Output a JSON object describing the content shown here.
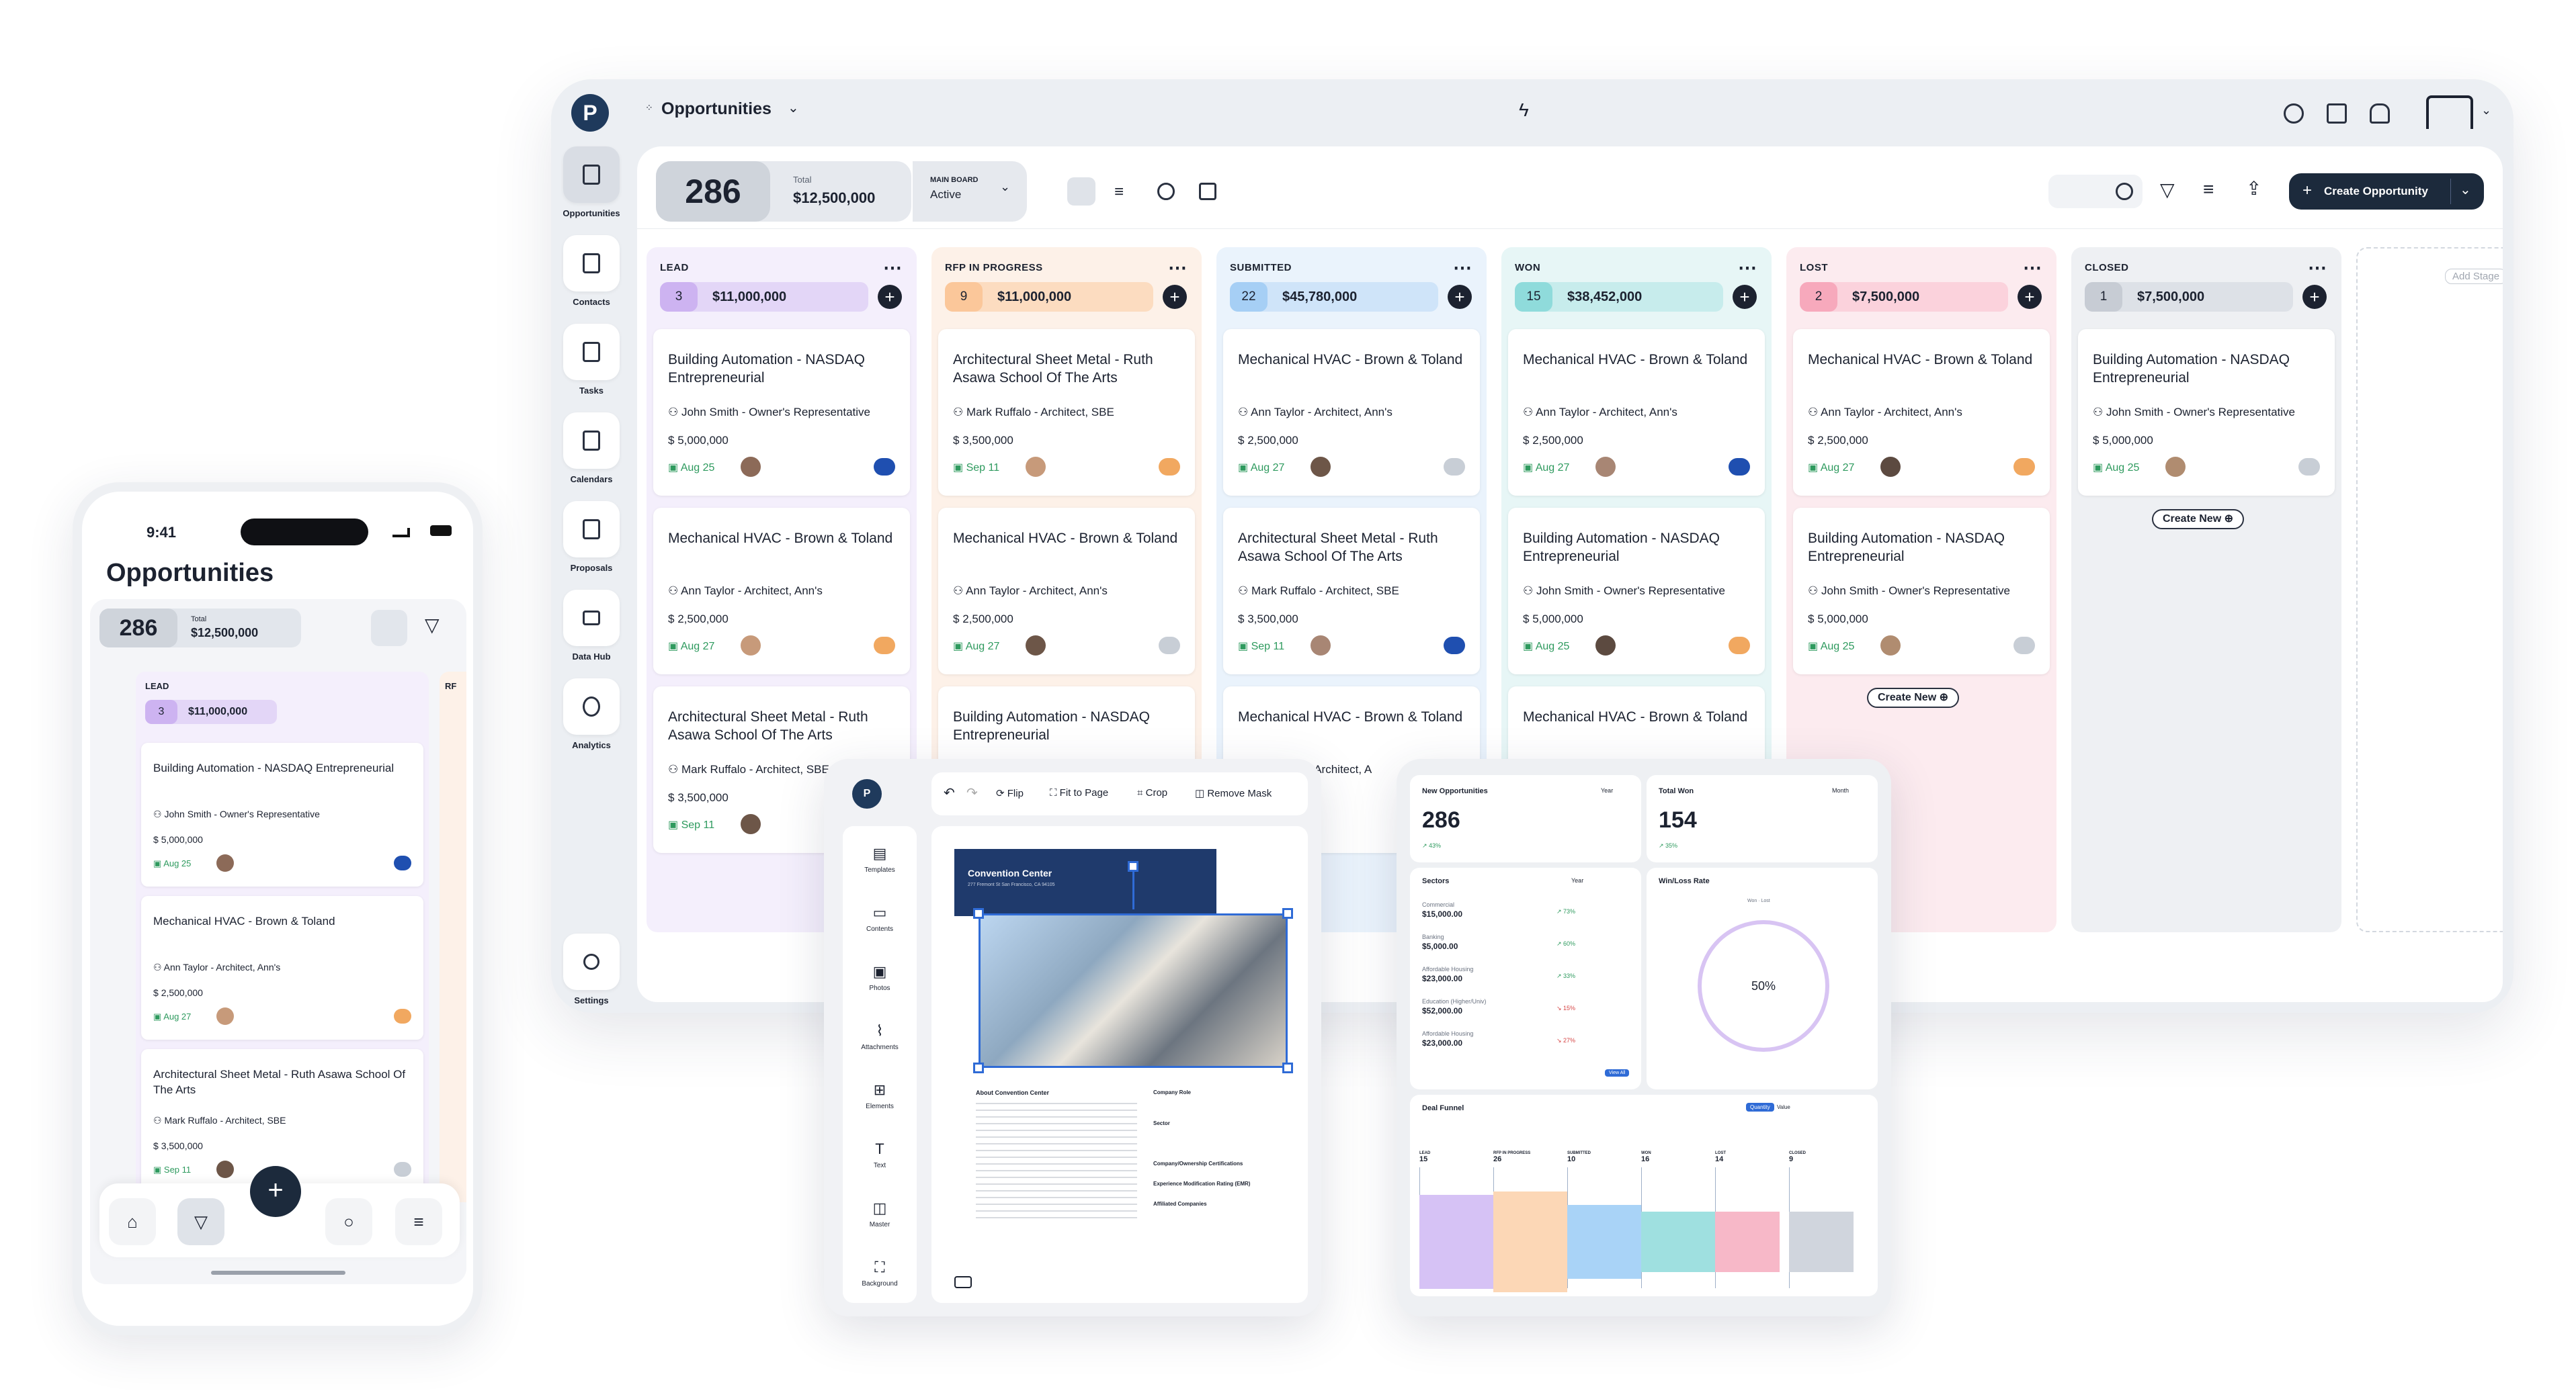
{
  "app": {
    "module": "Opportunities"
  },
  "toolbar": {
    "count": "286",
    "total_label": "Total",
    "total": "$12,500,000",
    "board_label": "MAIN BOARD",
    "board_value": "Active",
    "create": "Create Opportunity"
  },
  "nav": [
    {
      "label": "Opportunities"
    },
    {
      "label": "Contacts"
    },
    {
      "label": "Tasks"
    },
    {
      "label": "Calendars"
    },
    {
      "label": "Proposals"
    },
    {
      "label": "Data Hub"
    },
    {
      "label": "Analytics"
    },
    {
      "label": "Settings"
    }
  ],
  "columns": [
    {
      "name": "LEAD",
      "count": "3",
      "amount": "$11,000,000",
      "bg": "#f4effc",
      "pill": "#e3d6f7",
      "cnt": "#cdb3f1"
    },
    {
      "name": "RFP IN PROGRESS",
      "count": "9",
      "amount": "$11,000,000",
      "bg": "#fdf1e8",
      "pill": "#fcdcc0",
      "cnt": "#fbc79a"
    },
    {
      "name": "SUBMITTED",
      "count": "22",
      "amount": "$45,780,000",
      "bg": "#eaf3fc",
      "pill": "#cfe4f9",
      "cnt": "#a6cff5"
    },
    {
      "name": "WON",
      "count": "15",
      "amount": "$38,452,000",
      "bg": "#e7f6f6",
      "pill": "#c7ecec",
      "cnt": "#8fdbdb"
    },
    {
      "name": "LOST",
      "count": "2",
      "amount": "$7,500,000",
      "bg": "#fcebef",
      "pill": "#fbd2dc",
      "cnt": "#f7a9bc"
    },
    {
      "name": "CLOSED",
      "count": "1",
      "amount": "$7,500,000",
      "bg": "#eef0f3",
      "pill": "#dde1e7",
      "cnt": "#c7ccd4"
    }
  ],
  "add_stage": "Add Stage",
  "create_new": "Create New",
  "cards": {
    "lead": [
      {
        "title": "Building Automation - NASDAQ Entrepreneurial",
        "person": "John Smith - Owner's Representative",
        "amount": "5,000,000",
        "date": "Aug 25"
      },
      {
        "title": "Mechanical HVAC - Brown & Toland",
        "person": "Ann Taylor - Architect, Ann's",
        "amount": "2,500,000",
        "date": "Aug 27"
      },
      {
        "title": "Architectural Sheet Metal - Ruth Asawa School Of The Arts",
        "person": "Mark Ruffalo - Architect, SBE",
        "amount": "3,500,000",
        "date": "Sep 11"
      }
    ],
    "rfp": [
      {
        "title": "Architectural Sheet Metal - Ruth Asawa School Of The Arts",
        "person": "Mark Ruffalo - Architect, SBE",
        "amount": "3,500,000",
        "date": "Sep 11"
      },
      {
        "title": "Mechanical HVAC - Brown & Toland",
        "person": "Ann Taylor - Architect, Ann's",
        "amount": "2,500,000",
        "date": "Aug 27"
      },
      {
        "title": "Building Automation - NASDAQ Entrepreneurial",
        "person": "",
        "amount": "",
        "date": ""
      }
    ],
    "submitted": [
      {
        "title": "Mechanical HVAC - Brown & Toland",
        "person": "Ann Taylor - Architect, Ann's",
        "amount": "2,500,000",
        "date": "Aug 27"
      },
      {
        "title": "Architectural Sheet Metal - Ruth Asawa School Of The Arts",
        "person": "Mark Ruffalo - Architect, SBE",
        "amount": "3,500,000",
        "date": "Sep 11"
      },
      {
        "title": "Mechanical HVAC - Brown & Toland",
        "person": "Ann Taylor - Architect, A",
        "amount": "",
        "date": ""
      }
    ],
    "won": [
      {
        "title": "Mechanical HVAC - Brown & Toland",
        "person": "Ann Taylor - Architect, Ann's",
        "amount": "2,500,000",
        "date": "Aug 27"
      },
      {
        "title": "Building Automation - NASDAQ Entrepreneurial",
        "person": "John Smith - Owner's Representative",
        "amount": "5,000,000",
        "date": "Aug 25"
      },
      {
        "title": "Mechanical HVAC - Brown & Toland",
        "person": "",
        "amount": "",
        "date": ""
      }
    ],
    "lost": [
      {
        "title": "Mechanical HVAC - Brown & Toland",
        "person": "Ann Taylor - Architect, Ann's",
        "amount": "2,500,000",
        "date": "Aug 27"
      },
      {
        "title": "Building Automation - NASDAQ Entrepreneurial",
        "person": "John Smith - Owner's Representative",
        "amount": "5,000,000",
        "date": "Aug 25"
      }
    ],
    "closed": [
      {
        "title": "Building Automation - NASDAQ Entrepreneurial",
        "person": "John Smith - Owner's Representative",
        "amount": "5,000,000",
        "date": "Aug 25"
      }
    ]
  },
  "phone": {
    "time": "9:41",
    "title": "Opportunities",
    "count": "286",
    "total_label": "Total",
    "total": "$12,500,000",
    "col": "LEAD",
    "col_count": "3",
    "col_amount": "$11,000,000",
    "col2": "RF",
    "cards": [
      {
        "title": "Building Automation - NASDAQ Entrepreneurial",
        "person": "John Smith - Owner's Representative",
        "amount": "5,000,000",
        "date": "Aug 25"
      },
      {
        "title": "Mechanical HVAC - Brown & Toland",
        "person": "Ann Taylor - Architect, Ann's",
        "amount": "2,500,000",
        "date": "Aug 27"
      },
      {
        "title": "Architectural Sheet Metal - Ruth Asawa School Of The Arts",
        "person": "Mark Ruffalo - Architect, SBE",
        "amount": "3,500,000",
        "date": "Sep 11"
      }
    ]
  },
  "editor": {
    "tools": [
      "Flip",
      "Fit to Page",
      "Crop",
      "Remove Mask"
    ],
    "side": [
      "Templates",
      "Contents",
      "Photos",
      "Attachments",
      "Elements",
      "Text",
      "Master",
      "Background"
    ],
    "doc_title": "Convention Center",
    "doc_addr": "277 Fremont St San Francisco, CA 94105",
    "about": "About Convention Center",
    "company_role": "Company Role",
    "sector": "Sector",
    "cert": "Company/Ownership Certifications",
    "emr": "Experience Modification Rating (EMR)",
    "affiliated": "Affiliated Companies"
  },
  "dash": {
    "new_label": "New Opportunities",
    "new_val": "286",
    "new_pct": "43%",
    "won_label": "Total Won",
    "won_val": "154",
    "won_pct": "35%",
    "year": "Year",
    "month": "Month",
    "sectors": "Sectors",
    "winloss": "Win/Loss Rate",
    "rate": "50%",
    "won_legend": "Won",
    "lost_legend": "Lost",
    "view_all": "View All",
    "sector_rows": [
      {
        "name": "Commercial",
        "val": "$15,000.00",
        "pct": "73%"
      },
      {
        "name": "Banking",
        "val": "$5,000.00",
        "pct": "60%"
      },
      {
        "name": "Affordable Housing",
        "val": "$23,000.00",
        "pct": "33%"
      },
      {
        "name": "Education (Higher/Univ)",
        "val": "$52,000.00",
        "pct": "15%"
      },
      {
        "name": "Affordable Housing",
        "val": "$23,000.00",
        "pct": "27%"
      }
    ],
    "funnel": "Deal Funnel",
    "quantity": "Quantity",
    "value": "Value",
    "funnel_stages": [
      {
        "name": "LEAD",
        "n": "15"
      },
      {
        "name": "RFP IN PROGRESS",
        "n": "26"
      },
      {
        "name": "SUBMITTED",
        "n": "10"
      },
      {
        "name": "WON",
        "n": "16"
      },
      {
        "name": "LOST",
        "n": "14"
      },
      {
        "name": "CLOSED",
        "n": "9"
      }
    ]
  }
}
